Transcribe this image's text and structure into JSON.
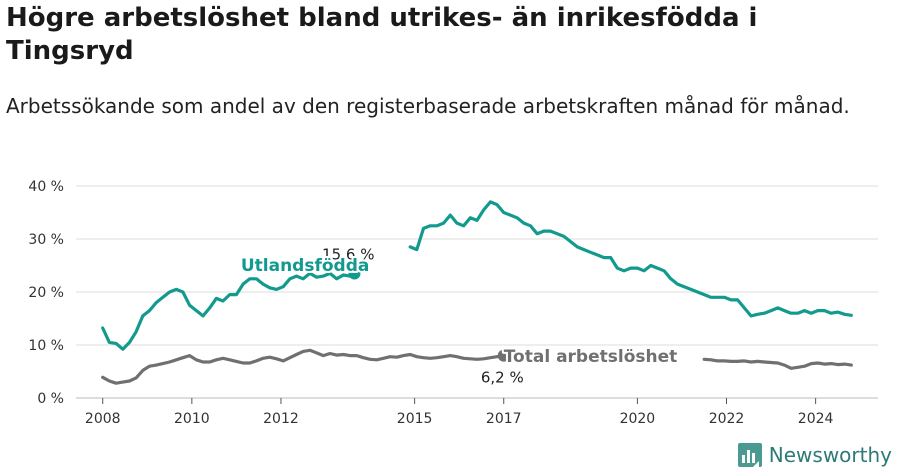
{
  "title": "Högre arbetslöshet bland utrikes- än inrikesfödda i Tingsryd",
  "subtitle": "Arbetssökande som andel av den registerbaserade arbetskraften månad för månad.",
  "brand": {
    "name": "Newsworthy",
    "icon": "newsworthy-logo-icon"
  },
  "colors": {
    "foreign": "#129a8e",
    "total": "#707070",
    "grid": "#dddddd",
    "brand": "#2c7a78"
  },
  "chart_data": {
    "type": "line",
    "x_range": [
      2008.0,
      2024.8
    ],
    "ylim": [
      0,
      40
    ],
    "y_ticks": [
      0,
      10,
      20,
      30,
      40
    ],
    "y_tick_labels": [
      "0 %",
      "10 %",
      "20 %",
      "30 %",
      "40 %"
    ],
    "x_ticks": [
      2008,
      2010,
      2012,
      2015,
      2017,
      2020,
      2022,
      2024
    ],
    "x_tick_labels": [
      "2008",
      "2010",
      "2012",
      "2015",
      "2017",
      "2020",
      "2022",
      "2024"
    ],
    "grid": "horizontal",
    "series": [
      {
        "name": "Utlandsfödda",
        "end_label": "15,6 %",
        "x": [
          2008.0,
          2008.15,
          2008.3,
          2008.45,
          2008.6,
          2008.75,
          2008.9,
          2009.05,
          2009.2,
          2009.35,
          2009.5,
          2009.65,
          2009.8,
          2009.95,
          2010.1,
          2010.25,
          2010.4,
          2010.55,
          2010.7,
          2010.85,
          2011.0,
          2011.15,
          2011.3,
          2011.45,
          2011.6,
          2011.75,
          2011.9,
          2012.05,
          2012.2,
          2012.35,
          2012.5,
          2012.65,
          2012.8,
          2012.95,
          2013.1,
          2013.25,
          2013.4,
          2013.55,
          2013.65
        ],
        "values": [
          13.2,
          10.5,
          10.3,
          9.2,
          10.5,
          12.5,
          15.5,
          16.5,
          18.0,
          19.0,
          20.0,
          20.5,
          20.0,
          17.5,
          16.5,
          15.5,
          17.0,
          18.8,
          18.3,
          19.5,
          19.5,
          21.5,
          22.5,
          22.5,
          21.5,
          20.8,
          20.5,
          21.0,
          22.5,
          23.0,
          22.5,
          23.5,
          22.8,
          23.0,
          23.5,
          22.5,
          23.2,
          23.0,
          23.5
        ]
      },
      {
        "name": "Utlandsfödda",
        "x": [
          2014.9,
          2015.05,
          2015.2,
          2015.35,
          2015.5,
          2015.65,
          2015.8,
          2015.95,
          2016.1,
          2016.25,
          2016.4,
          2016.55,
          2016.7,
          2016.85,
          2017.0,
          2017.15,
          2017.3,
          2017.45,
          2017.6,
          2017.75,
          2017.9,
          2018.05,
          2018.2,
          2018.35,
          2018.5,
          2018.65,
          2018.8,
          2018.95,
          2019.1,
          2019.25,
          2019.4,
          2019.55,
          2019.7,
          2019.85,
          2020.0,
          2020.15,
          2020.3,
          2020.45,
          2020.6,
          2020.75,
          2020.9,
          2021.05,
          2021.2,
          2021.35,
          2021.5,
          2021.65,
          2021.8,
          2021.95,
          2022.1,
          2022.25,
          2022.4,
          2022.55,
          2022.7,
          2022.85,
          2023.0,
          2023.15,
          2023.3,
          2023.45,
          2023.6,
          2023.75,
          2023.9,
          2024.05,
          2024.2,
          2024.35,
          2024.5,
          2024.65,
          2024.8
        ],
        "values": [
          28.5,
          28.0,
          32.0,
          32.5,
          32.5,
          33.0,
          34.5,
          33.0,
          32.5,
          34.0,
          33.5,
          35.5,
          37.0,
          36.5,
          35.0,
          34.5,
          34.0,
          33.0,
          32.5,
          31.0,
          31.5,
          31.5,
          31.0,
          30.5,
          29.5,
          28.5,
          28.0,
          27.5,
          27.0,
          26.5,
          26.5,
          24.5,
          24.0,
          24.5,
          24.5,
          24.0,
          25.0,
          24.5,
          24.0,
          22.5,
          21.5,
          21.0,
          20.5,
          20.0,
          19.5,
          19.0,
          19.0,
          19.0,
          18.5,
          18.5,
          17.0,
          15.5,
          15.8,
          16.0,
          16.5,
          17.0,
          16.5,
          16.0,
          16.0,
          16.5,
          16.0,
          16.5,
          16.5,
          16.0,
          16.2,
          15.8,
          15.6
        ]
      },
      {
        "name": "Total arbetslöshet",
        "end_label": "6,2 %",
        "x": [
          2008.0,
          2008.15,
          2008.3,
          2008.45,
          2008.6,
          2008.75,
          2008.9,
          2009.05,
          2009.2,
          2009.35,
          2009.5,
          2009.65,
          2009.8,
          2009.95,
          2010.1,
          2010.25,
          2010.4,
          2010.55,
          2010.7,
          2010.85,
          2011.0,
          2011.15,
          2011.3,
          2011.45,
          2011.6,
          2011.75,
          2011.9,
          2012.05,
          2012.2,
          2012.35,
          2012.5,
          2012.65,
          2012.8,
          2012.95,
          2013.1,
          2013.25,
          2013.4,
          2013.55,
          2013.7,
          2013.85,
          2014.0,
          2014.15,
          2014.3,
          2014.45,
          2014.6,
          2014.75,
          2014.9,
          2015.05,
          2015.2,
          2015.35,
          2015.5,
          2015.65,
          2015.8,
          2015.95,
          2016.1,
          2016.25,
          2016.4,
          2016.55,
          2016.7,
          2016.85,
          2017.0
        ],
        "values": [
          3.9,
          3.2,
          2.8,
          3.0,
          3.2,
          3.8,
          5.2,
          6.0,
          6.2,
          6.5,
          6.8,
          7.2,
          7.6,
          8.0,
          7.2,
          6.8,
          6.8,
          7.2,
          7.5,
          7.2,
          6.9,
          6.6,
          6.6,
          7.0,
          7.5,
          7.7,
          7.4,
          7.0,
          7.6,
          8.2,
          8.8,
          9.0,
          8.5,
          8.0,
          8.4,
          8.1,
          8.2,
          8.0,
          8.0,
          7.6,
          7.3,
          7.2,
          7.5,
          7.8,
          7.7,
          8.0,
          8.2,
          7.8,
          7.6,
          7.5,
          7.6,
          7.8,
          8.0,
          7.8,
          7.5,
          7.4,
          7.3,
          7.4,
          7.6,
          7.8,
          8.0
        ]
      },
      {
        "name": "Total arbetslöshet",
        "x": [
          2021.5,
          2021.65,
          2021.8,
          2021.95,
          2022.1,
          2022.25,
          2022.4,
          2022.55,
          2022.7,
          2022.85,
          2023.0,
          2023.15,
          2023.3,
          2023.45,
          2023.6,
          2023.75,
          2023.9,
          2024.05,
          2024.2,
          2024.35,
          2024.5,
          2024.65,
          2024.8
        ],
        "values": [
          7.3,
          7.2,
          7.0,
          7.0,
          6.9,
          6.9,
          7.0,
          6.8,
          6.9,
          6.8,
          6.7,
          6.6,
          6.2,
          5.6,
          5.8,
          6.0,
          6.5,
          6.6,
          6.4,
          6.5,
          6.3,
          6.4,
          6.2
        ]
      }
    ],
    "labels": [
      {
        "text": "Utlandsfödda",
        "x": 2011.1,
        "y": 24.0,
        "series": "foreign"
      },
      {
        "text": "Total arbetslöshet",
        "x": 2017.0,
        "y": 6.8,
        "series": "total"
      }
    ]
  }
}
